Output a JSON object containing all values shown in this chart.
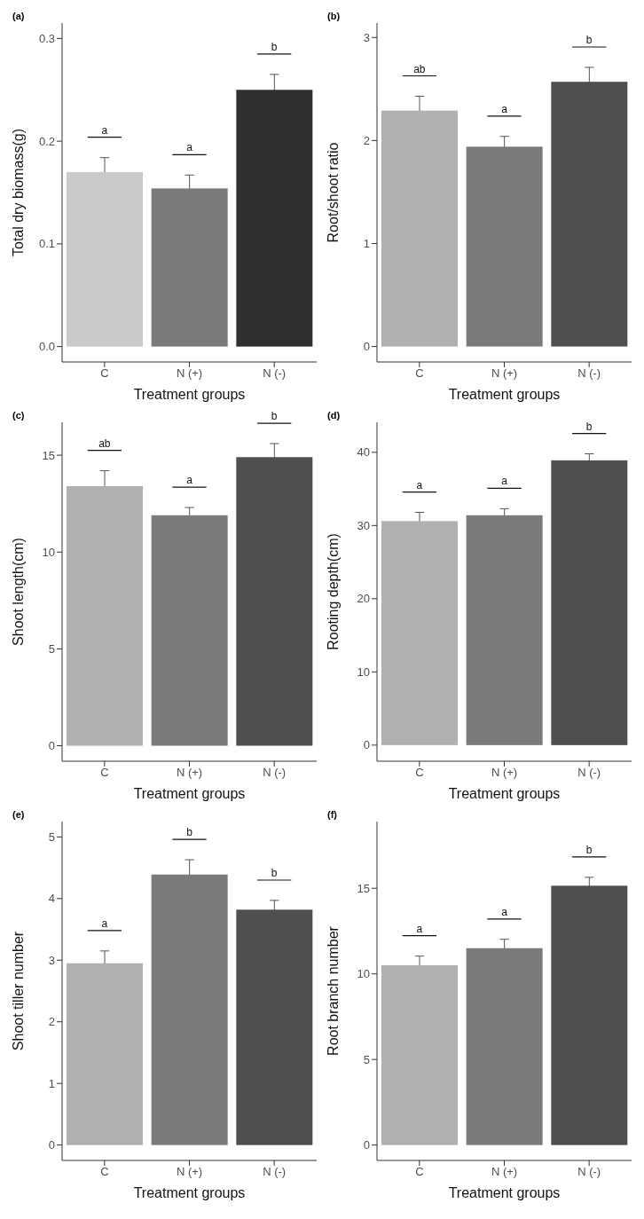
{
  "chart_data": [
    {
      "type": "bar",
      "title": "(a)",
      "xlabel": "Treatment groups",
      "ylabel": "Total  dry biomass(g)",
      "categories": [
        "C",
        "N (+)",
        "N (-)"
      ],
      "values": [
        0.17,
        0.154,
        0.25
      ],
      "errors": [
        0.014,
        0.013,
        0.015
      ],
      "colors": [
        "#cacaca",
        "#7a7a7a",
        "#303030"
      ],
      "ylim": [
        -0.015,
        0.315
      ],
      "yticks": [
        {
          "value": 0,
          "label": "0.0"
        },
        0.1,
        0.2,
        0.3
      ],
      "annotations": [
        "a",
        "a",
        "b"
      ]
    },
    {
      "type": "bar",
      "title": "(b)",
      "xlabel": "Treatment groups",
      "ylabel": "Root/shoot ratio",
      "categories": [
        "C",
        "N (+)",
        "N (-)"
      ],
      "values": [
        2.29,
        1.94,
        2.57
      ],
      "errors": [
        0.14,
        0.1,
        0.14
      ],
      "colors": [
        "#b0b0b0",
        "#7a7a7a",
        "#4f4f4f"
      ],
      "ylim": [
        -0.15,
        3.14
      ],
      "yticks": [
        0,
        1,
        2,
        3
      ],
      "annotations": [
        "ab",
        "a",
        "b"
      ]
    },
    {
      "type": "bar",
      "title": "(c)",
      "xlabel": "Treatment groups",
      "ylabel": "Shoot length(cm)",
      "categories": [
        "C",
        "N (+)",
        "N (-)"
      ],
      "values": [
        13.4,
        11.9,
        14.9
      ],
      "errors": [
        0.8,
        0.4,
        0.7
      ],
      "colors": [
        "#b0b0b0",
        "#7a7a7a",
        "#4f4f4f"
      ],
      "ylim": [
        -0.8,
        16.7
      ],
      "yticks": [
        0,
        5,
        10,
        15
      ],
      "annotations": [
        "ab",
        "a",
        "b"
      ]
    },
    {
      "type": "bar",
      "title": "(d)",
      "xlabel": "Treatment groups",
      "ylabel": "Rooting depth(cm)",
      "categories": [
        "C",
        "N (+)",
        "N (-)"
      ],
      "values": [
        30.6,
        31.4,
        38.9
      ],
      "errors": [
        1.2,
        0.9,
        0.9
      ],
      "colors": [
        "#b0b0b0",
        "#7a7a7a",
        "#4f4f4f"
      ],
      "ylim": [
        -2.2,
        44.1
      ],
      "yticks": [
        0,
        10,
        20,
        30,
        40
      ],
      "annotations": [
        "a",
        "a",
        "b"
      ]
    },
    {
      "type": "bar",
      "title": "(e)",
      "xlabel": "Treatment groups",
      "ylabel": "Shoot tiller number",
      "categories": [
        "C",
        "N (+)",
        "N (-)"
      ],
      "values": [
        2.95,
        4.39,
        3.82
      ],
      "errors": [
        0.2,
        0.24,
        0.15
      ],
      "colors": [
        "#b0b0b0",
        "#7a7a7a",
        "#4f4f4f"
      ],
      "ylim": [
        -0.25,
        5.25
      ],
      "yticks": [
        0,
        1,
        2,
        3,
        4,
        5
      ],
      "annotations": [
        "a",
        "b",
        "b"
      ]
    },
    {
      "type": "bar",
      "title": "(f)",
      "xlabel": "Treatment groups",
      "ylabel": "Root branch number",
      "categories": [
        "C",
        "N (+)",
        "N (-)"
      ],
      "values": [
        10.5,
        11.5,
        15.15
      ],
      "errors": [
        0.54,
        0.52,
        0.49
      ],
      "colors": [
        "#b0b0b0",
        "#7a7a7a",
        "#4f4f4f"
      ],
      "ylim": [
        -0.9,
        18.9
      ],
      "yticks": [
        0,
        5,
        10,
        15
      ],
      "annotations": [
        "a",
        "a",
        "b"
      ]
    }
  ]
}
